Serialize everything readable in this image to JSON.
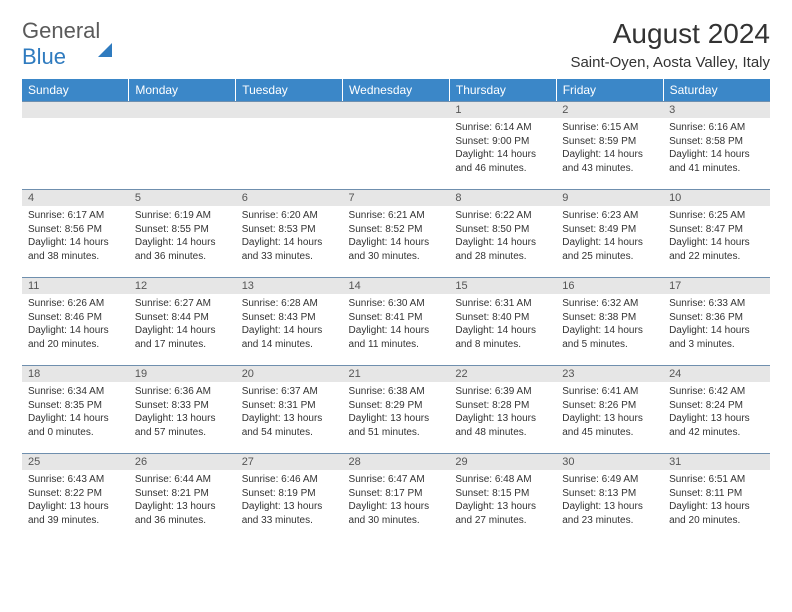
{
  "logo": {
    "part1": "General",
    "part2": "Blue"
  },
  "header": {
    "title": "August 2024",
    "location": "Saint-Oyen, Aosta Valley, Italy"
  },
  "colors": {
    "header_bg": "#3b87c8",
    "header_text": "#ffffff",
    "daynum_bg": "#e6e6e6",
    "cell_border": "#6f8fae",
    "body_text": "#333333",
    "logo_gray": "#5a5a5a",
    "logo_blue": "#2f7bbf"
  },
  "dayHeaders": [
    "Sunday",
    "Monday",
    "Tuesday",
    "Wednesday",
    "Thursday",
    "Friday",
    "Saturday"
  ],
  "weeks": [
    [
      null,
      null,
      null,
      null,
      {
        "num": "1",
        "sunrise": "Sunrise: 6:14 AM",
        "sunset": "Sunset: 9:00 PM",
        "daylight": "Daylight: 14 hours and 46 minutes."
      },
      {
        "num": "2",
        "sunrise": "Sunrise: 6:15 AM",
        "sunset": "Sunset: 8:59 PM",
        "daylight": "Daylight: 14 hours and 43 minutes."
      },
      {
        "num": "3",
        "sunrise": "Sunrise: 6:16 AM",
        "sunset": "Sunset: 8:58 PM",
        "daylight": "Daylight: 14 hours and 41 minutes."
      }
    ],
    [
      {
        "num": "4",
        "sunrise": "Sunrise: 6:17 AM",
        "sunset": "Sunset: 8:56 PM",
        "daylight": "Daylight: 14 hours and 38 minutes."
      },
      {
        "num": "5",
        "sunrise": "Sunrise: 6:19 AM",
        "sunset": "Sunset: 8:55 PM",
        "daylight": "Daylight: 14 hours and 36 minutes."
      },
      {
        "num": "6",
        "sunrise": "Sunrise: 6:20 AM",
        "sunset": "Sunset: 8:53 PM",
        "daylight": "Daylight: 14 hours and 33 minutes."
      },
      {
        "num": "7",
        "sunrise": "Sunrise: 6:21 AM",
        "sunset": "Sunset: 8:52 PM",
        "daylight": "Daylight: 14 hours and 30 minutes."
      },
      {
        "num": "8",
        "sunrise": "Sunrise: 6:22 AM",
        "sunset": "Sunset: 8:50 PM",
        "daylight": "Daylight: 14 hours and 28 minutes."
      },
      {
        "num": "9",
        "sunrise": "Sunrise: 6:23 AM",
        "sunset": "Sunset: 8:49 PM",
        "daylight": "Daylight: 14 hours and 25 minutes."
      },
      {
        "num": "10",
        "sunrise": "Sunrise: 6:25 AM",
        "sunset": "Sunset: 8:47 PM",
        "daylight": "Daylight: 14 hours and 22 minutes."
      }
    ],
    [
      {
        "num": "11",
        "sunrise": "Sunrise: 6:26 AM",
        "sunset": "Sunset: 8:46 PM",
        "daylight": "Daylight: 14 hours and 20 minutes."
      },
      {
        "num": "12",
        "sunrise": "Sunrise: 6:27 AM",
        "sunset": "Sunset: 8:44 PM",
        "daylight": "Daylight: 14 hours and 17 minutes."
      },
      {
        "num": "13",
        "sunrise": "Sunrise: 6:28 AM",
        "sunset": "Sunset: 8:43 PM",
        "daylight": "Daylight: 14 hours and 14 minutes."
      },
      {
        "num": "14",
        "sunrise": "Sunrise: 6:30 AM",
        "sunset": "Sunset: 8:41 PM",
        "daylight": "Daylight: 14 hours and 11 minutes."
      },
      {
        "num": "15",
        "sunrise": "Sunrise: 6:31 AM",
        "sunset": "Sunset: 8:40 PM",
        "daylight": "Daylight: 14 hours and 8 minutes."
      },
      {
        "num": "16",
        "sunrise": "Sunrise: 6:32 AM",
        "sunset": "Sunset: 8:38 PM",
        "daylight": "Daylight: 14 hours and 5 minutes."
      },
      {
        "num": "17",
        "sunrise": "Sunrise: 6:33 AM",
        "sunset": "Sunset: 8:36 PM",
        "daylight": "Daylight: 14 hours and 3 minutes."
      }
    ],
    [
      {
        "num": "18",
        "sunrise": "Sunrise: 6:34 AM",
        "sunset": "Sunset: 8:35 PM",
        "daylight": "Daylight: 14 hours and 0 minutes."
      },
      {
        "num": "19",
        "sunrise": "Sunrise: 6:36 AM",
        "sunset": "Sunset: 8:33 PM",
        "daylight": "Daylight: 13 hours and 57 minutes."
      },
      {
        "num": "20",
        "sunrise": "Sunrise: 6:37 AM",
        "sunset": "Sunset: 8:31 PM",
        "daylight": "Daylight: 13 hours and 54 minutes."
      },
      {
        "num": "21",
        "sunrise": "Sunrise: 6:38 AM",
        "sunset": "Sunset: 8:29 PM",
        "daylight": "Daylight: 13 hours and 51 minutes."
      },
      {
        "num": "22",
        "sunrise": "Sunrise: 6:39 AM",
        "sunset": "Sunset: 8:28 PM",
        "daylight": "Daylight: 13 hours and 48 minutes."
      },
      {
        "num": "23",
        "sunrise": "Sunrise: 6:41 AM",
        "sunset": "Sunset: 8:26 PM",
        "daylight": "Daylight: 13 hours and 45 minutes."
      },
      {
        "num": "24",
        "sunrise": "Sunrise: 6:42 AM",
        "sunset": "Sunset: 8:24 PM",
        "daylight": "Daylight: 13 hours and 42 minutes."
      }
    ],
    [
      {
        "num": "25",
        "sunrise": "Sunrise: 6:43 AM",
        "sunset": "Sunset: 8:22 PM",
        "daylight": "Daylight: 13 hours and 39 minutes."
      },
      {
        "num": "26",
        "sunrise": "Sunrise: 6:44 AM",
        "sunset": "Sunset: 8:21 PM",
        "daylight": "Daylight: 13 hours and 36 minutes."
      },
      {
        "num": "27",
        "sunrise": "Sunrise: 6:46 AM",
        "sunset": "Sunset: 8:19 PM",
        "daylight": "Daylight: 13 hours and 33 minutes."
      },
      {
        "num": "28",
        "sunrise": "Sunrise: 6:47 AM",
        "sunset": "Sunset: 8:17 PM",
        "daylight": "Daylight: 13 hours and 30 minutes."
      },
      {
        "num": "29",
        "sunrise": "Sunrise: 6:48 AM",
        "sunset": "Sunset: 8:15 PM",
        "daylight": "Daylight: 13 hours and 27 minutes."
      },
      {
        "num": "30",
        "sunrise": "Sunrise: 6:49 AM",
        "sunset": "Sunset: 8:13 PM",
        "daylight": "Daylight: 13 hours and 23 minutes."
      },
      {
        "num": "31",
        "sunrise": "Sunrise: 6:51 AM",
        "sunset": "Sunset: 8:11 PM",
        "daylight": "Daylight: 13 hours and 20 minutes."
      }
    ]
  ]
}
